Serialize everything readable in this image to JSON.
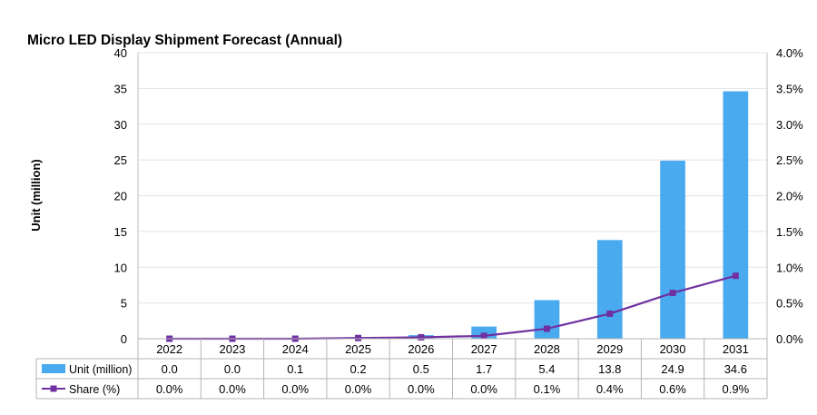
{
  "chart_data": {
    "type": "bar",
    "title": "Micro LED Display Shipment Forecast (Annual)",
    "ylabel": "Unit (million)",
    "categories": [
      "2022",
      "2023",
      "2024",
      "2025",
      "2026",
      "2027",
      "2028",
      "2029",
      "2030",
      "2031"
    ],
    "ylim": [
      0,
      40
    ],
    "y_ticks": [
      "0",
      "5",
      "10",
      "15",
      "20",
      "25",
      "30",
      "35",
      "40"
    ],
    "y2lim": [
      0,
      4.0
    ],
    "y2_ticks": [
      "0.0%",
      "0.5%",
      "1.0%",
      "1.5%",
      "2.0%",
      "2.5%",
      "3.0%",
      "3.5%",
      "4.0%"
    ],
    "grid": true,
    "legend": "data-table-rows",
    "series": [
      {
        "name": "Unit (million)",
        "type": "bar",
        "axis": "left",
        "color": "#4aaaf0",
        "values": [
          0.0,
          0.0,
          0.1,
          0.2,
          0.5,
          1.7,
          5.4,
          13.8,
          24.9,
          34.6
        ],
        "labels": [
          "0.0",
          "0.0",
          "0.1",
          "0.2",
          "0.5",
          "1.7",
          "5.4",
          "13.8",
          "24.9",
          "34.6"
        ]
      },
      {
        "name": "Share (%)",
        "type": "line",
        "axis": "right",
        "color": "#7030a0",
        "values": [
          0.0,
          0.0,
          0.0,
          0.01,
          0.02,
          0.04,
          0.14,
          0.35,
          0.64,
          0.88
        ],
        "labels": [
          "0.0%",
          "0.0%",
          "0.0%",
          "0.0%",
          "0.0%",
          "0.0%",
          "0.1%",
          "0.4%",
          "0.6%",
          "0.9%"
        ]
      }
    ]
  }
}
